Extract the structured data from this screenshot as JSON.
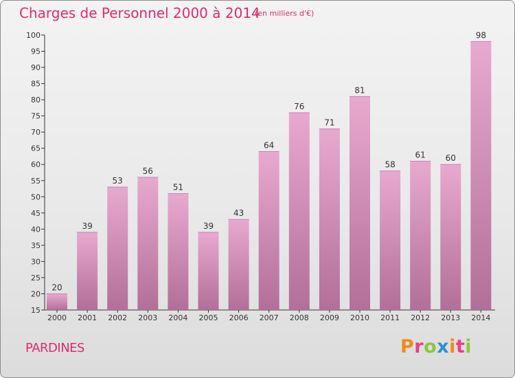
{
  "header": {
    "title": "Charges de Personnel 2000 à 2014",
    "subtitle": "(en milliers d'€)"
  },
  "footer": {
    "commune": "PARDINES",
    "logo_text": "Proxiti"
  },
  "colors": {
    "accent": "#dd2c6e",
    "bar_top": "#e8a9cf",
    "bar_bottom": "#b26f98",
    "logo_letters": [
      "#f08a1c",
      "#e83f8a",
      "#8dc63f",
      "#2b8fd6",
      "#f08a1c",
      "#e83f8a",
      "#8dc63f"
    ]
  },
  "chart_data": {
    "type": "bar",
    "categories": [
      "2000",
      "2001",
      "2002",
      "2003",
      "2004",
      "2005",
      "2006",
      "2007",
      "2008",
      "2009",
      "2010",
      "2011",
      "2012",
      "2013",
      "2014"
    ],
    "values": [
      20,
      39,
      53,
      56,
      51,
      39,
      43,
      64,
      76,
      71,
      81,
      58,
      61,
      60,
      98
    ],
    "ylim": [
      15,
      100
    ],
    "yticks": [
      15,
      20,
      25,
      30,
      35,
      40,
      45,
      50,
      55,
      60,
      65,
      70,
      75,
      80,
      85,
      90,
      95,
      100
    ],
    "grid": false,
    "data_labels": true
  }
}
